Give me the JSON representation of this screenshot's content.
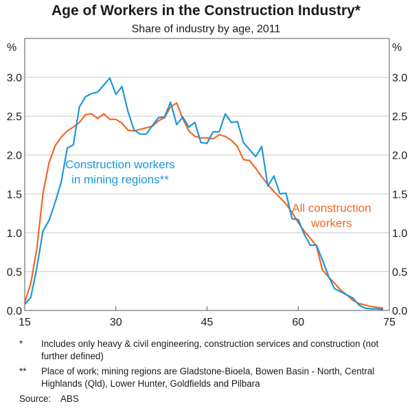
{
  "chart_data": {
    "type": "line",
    "title": "Age of Workers in the Construction Industry*",
    "subtitle": "Share of industry by age, 2011",
    "xlabel": "",
    "ylabel": "%",
    "xlim": [
      15,
      75
    ],
    "ylim": [
      0,
      3.5
    ],
    "xticks": [
      "15",
      "30",
      "45",
      "60",
      "75"
    ],
    "yticks": [
      "0.0",
      "0.5",
      "1.0",
      "1.5",
      "2.0",
      "2.5",
      "3.0"
    ],
    "grid": true,
    "series": [
      {
        "name": "Construction workers in mining regions**",
        "label_lines": [
          "Construction workers",
          "in mining regions**"
        ],
        "color": "#1a97d6",
        "x": [
          15,
          16,
          17,
          18,
          19,
          20,
          21,
          22,
          23,
          24,
          25,
          26,
          27,
          28,
          29,
          30,
          31,
          32,
          33,
          34,
          35,
          36,
          37,
          38,
          39,
          40,
          41,
          42,
          43,
          44,
          45,
          46,
          47,
          48,
          49,
          50,
          51,
          52,
          53,
          54,
          55,
          56,
          57,
          58,
          59,
          60,
          61,
          62,
          63,
          64,
          65,
          66,
          67,
          68,
          69,
          70,
          71,
          72,
          73,
          74
        ],
        "values": [
          0.08,
          0.17,
          0.55,
          1.02,
          1.16,
          1.39,
          1.65,
          2.09,
          2.13,
          2.62,
          2.75,
          2.79,
          2.81,
          2.9,
          2.99,
          2.78,
          2.88,
          2.56,
          2.32,
          2.27,
          2.27,
          2.38,
          2.48,
          2.49,
          2.68,
          2.39,
          2.49,
          2.36,
          2.42,
          2.16,
          2.15,
          2.3,
          2.3,
          2.53,
          2.42,
          2.43,
          2.16,
          2.07,
          1.98,
          2.11,
          1.6,
          1.73,
          1.5,
          1.51,
          1.18,
          1.17,
          0.98,
          0.84,
          0.84,
          0.65,
          0.44,
          0.28,
          0.24,
          0.2,
          0.16,
          0.07,
          0.03,
          0.02,
          0.02,
          0.01
        ]
      },
      {
        "name": "All construction workers",
        "label_lines": [
          "All construction",
          "workers"
        ],
        "color": "#f26522",
        "x": [
          15,
          16,
          17,
          18,
          19,
          20,
          21,
          22,
          23,
          24,
          25,
          26,
          27,
          28,
          29,
          30,
          31,
          32,
          33,
          34,
          35,
          36,
          37,
          38,
          39,
          40,
          41,
          42,
          43,
          44,
          45,
          46,
          47,
          48,
          49,
          50,
          51,
          52,
          53,
          54,
          55,
          56,
          57,
          58,
          59,
          60,
          61,
          62,
          63,
          64,
          65,
          66,
          67,
          68,
          69,
          70,
          71,
          72,
          73,
          74
        ],
        "values": [
          0.1,
          0.35,
          0.8,
          1.5,
          1.9,
          2.12,
          2.23,
          2.31,
          2.36,
          2.42,
          2.52,
          2.53,
          2.47,
          2.53,
          2.46,
          2.46,
          2.41,
          2.32,
          2.31,
          2.33,
          2.35,
          2.37,
          2.44,
          2.48,
          2.62,
          2.67,
          2.47,
          2.31,
          2.24,
          2.22,
          2.22,
          2.21,
          2.26,
          2.24,
          2.19,
          2.11,
          1.94,
          1.93,
          1.83,
          1.72,
          1.62,
          1.53,
          1.45,
          1.37,
          1.26,
          1.13,
          1.02,
          0.93,
          0.83,
          0.52,
          0.43,
          0.35,
          0.26,
          0.2,
          0.13,
          0.09,
          0.07,
          0.05,
          0.04,
          0.03
        ]
      }
    ]
  },
  "notes": [
    {
      "mark": "*",
      "text": "Includes only heavy & civil engineering, construction services and construction (not further defined)"
    },
    {
      "mark": "**",
      "text": "Place of work; mining regions are Gladstone-Bioela, Bowen Basin - North, Central Highlands (Qld), Lower Hunter, Goldfields and Pilbara"
    }
  ],
  "source": {
    "label": "Source:",
    "value": "ABS"
  }
}
